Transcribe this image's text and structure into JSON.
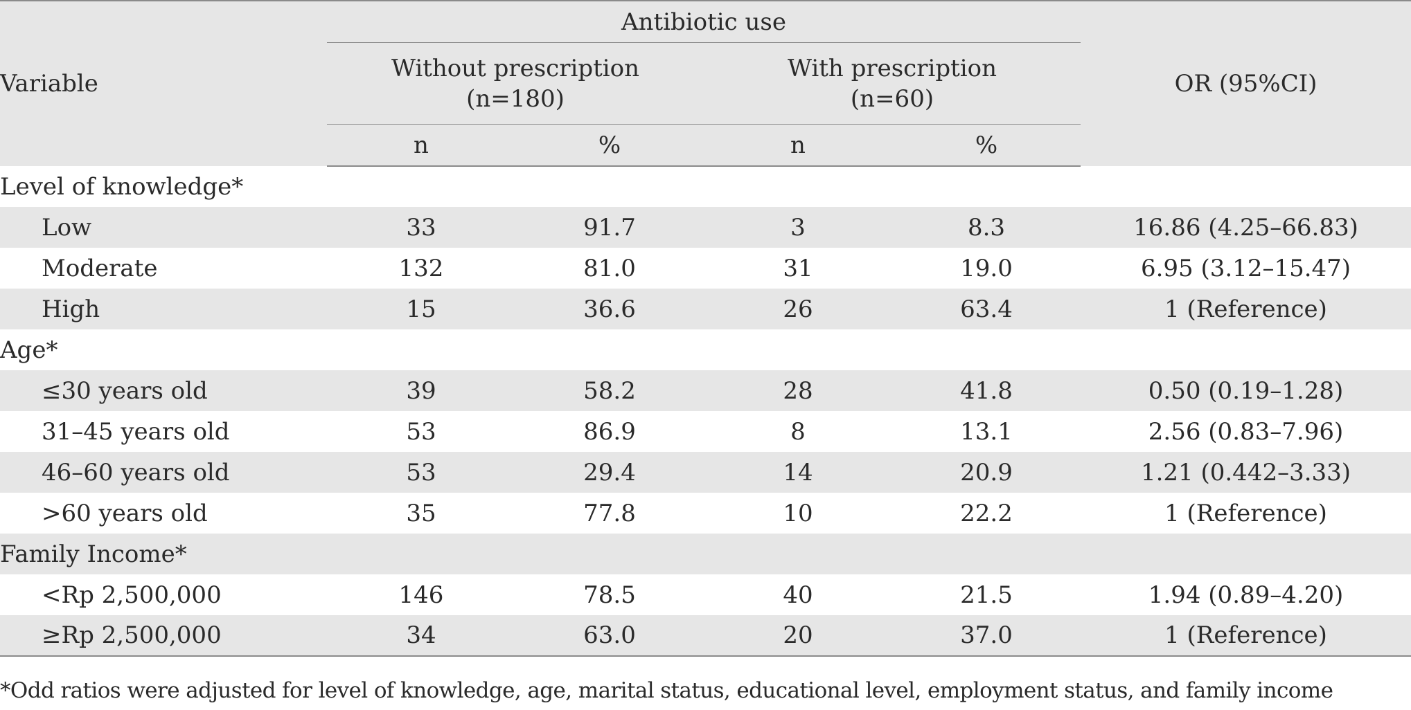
{
  "header": {
    "variable": "Variable",
    "group_title": "Antibiotic use",
    "without_label": "Without prescription",
    "without_n": "(n=180)",
    "with_label": "With prescription",
    "with_n": "(n=60)",
    "or_label": "OR (95%CI)",
    "n_label": "n",
    "pct_label": "%"
  },
  "rows": [
    {
      "type": "section",
      "label": "Level of knowledge*"
    },
    {
      "type": "data",
      "label": "Low",
      "n1": "33",
      "p1": "91.7",
      "n2": "3",
      "p2": "8.3",
      "or": "16.86 (4.25–66.83)"
    },
    {
      "type": "data",
      "label": "Moderate",
      "n1": "132",
      "p1": "81.0",
      "n2": "31",
      "p2": "19.0",
      "or": "6.95 (3.12–15.47)"
    },
    {
      "type": "data",
      "label": "High",
      "n1": "15",
      "p1": "36.6",
      "n2": "26",
      "p2": "63.4",
      "or": "1 (Reference)"
    },
    {
      "type": "section",
      "label": "Age*"
    },
    {
      "type": "data",
      "label": "≤30 years old",
      "n1": "39",
      "p1": "58.2",
      "n2": "28",
      "p2": "41.8",
      "or": "0.50 (0.19–1.28)"
    },
    {
      "type": "data",
      "label": "31–45 years old",
      "n1": "53",
      "p1": "86.9",
      "n2": "8",
      "p2": "13.1",
      "or": "2.56 (0.83–7.96)"
    },
    {
      "type": "data",
      "label": "46–60 years old",
      "n1": "53",
      "p1": "29.4",
      "n2": "14",
      "p2": "20.9",
      "or": "1.21 (0.442–3.33)"
    },
    {
      "type": "data",
      "label": ">60 years old",
      "n1": "35",
      "p1": "77.8",
      "n2": "10",
      "p2": "22.2",
      "or": "1 (Reference)"
    },
    {
      "type": "section",
      "label": "Family Income*"
    },
    {
      "type": "data",
      "label": "<Rp 2,500,000",
      "n1": "146",
      "p1": "78.5",
      "n2": "40",
      "p2": "21.5",
      "or": "1.94 (0.89–4.20)"
    },
    {
      "type": "data",
      "label": "≥Rp 2,500,000",
      "n1": "34",
      "p1": "63.0",
      "n2": "20",
      "p2": "37.0",
      "or": "1 (Reference)"
    }
  ],
  "footnote": "*Odd ratios were adjusted for level of knowledge, age, marital status, educational level, employment status, and family income",
  "colors": {
    "header_bg": "#e6e6e6",
    "stripe_bg": "#e6e6e6",
    "rule": "#8a8a8a",
    "text": "#2a2a2a"
  }
}
